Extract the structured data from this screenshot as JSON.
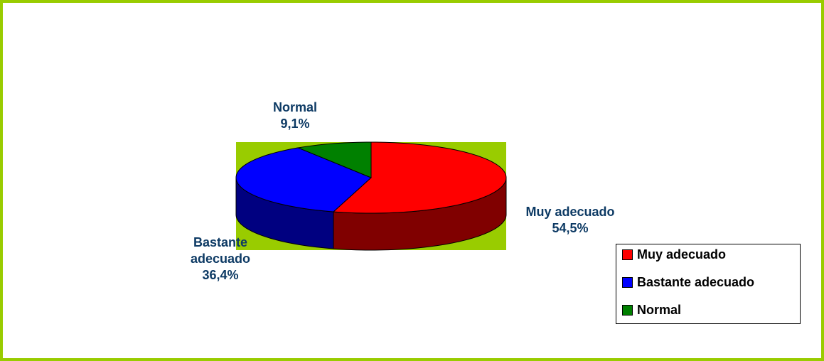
{
  "chart_data": {
    "type": "pie",
    "categories": [
      "Muy adecuado",
      "Bastante adecuado",
      "Normal"
    ],
    "values": [
      54.5,
      36.4,
      9.1
    ],
    "value_labels": [
      "54,5%",
      "36,4%",
      "9,1%"
    ],
    "colors": [
      "#ff0000",
      "#0000ff",
      "#008000"
    ],
    "legend": "right"
  }
}
